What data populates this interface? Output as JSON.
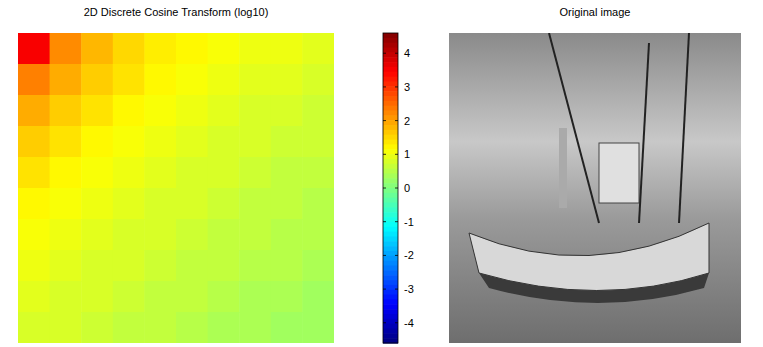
{
  "chart_data": [
    {
      "type": "heatmap",
      "title": "2D Discrete Cosine Transform (log10)",
      "tick_labels": false,
      "cells": [
        [
          3.5,
          2.2,
          1.8,
          1.5,
          1.3,
          1.2,
          1.1,
          1.0,
          1.0,
          0.9
        ],
        [
          2.3,
          1.9,
          1.6,
          1.4,
          1.2,
          1.1,
          1.0,
          0.9,
          0.9,
          0.8
        ],
        [
          1.9,
          1.6,
          1.4,
          1.2,
          1.1,
          1.0,
          0.9,
          0.8,
          0.8,
          0.7
        ],
        [
          1.6,
          1.4,
          1.2,
          1.1,
          1.0,
          0.9,
          0.8,
          0.8,
          0.7,
          0.7
        ],
        [
          1.4,
          1.2,
          1.1,
          1.0,
          0.9,
          0.8,
          0.8,
          0.7,
          0.6,
          0.6
        ],
        [
          1.2,
          1.1,
          1.0,
          0.9,
          0.8,
          0.8,
          0.7,
          0.6,
          0.6,
          0.5
        ],
        [
          1.1,
          1.0,
          0.9,
          0.8,
          0.8,
          0.7,
          0.6,
          0.6,
          0.5,
          0.5
        ],
        [
          1.0,
          0.9,
          0.8,
          0.8,
          0.7,
          0.6,
          0.6,
          0.5,
          0.5,
          0.4
        ],
        [
          0.9,
          0.8,
          0.8,
          0.7,
          0.6,
          0.6,
          0.5,
          0.4,
          0.4,
          0.3
        ],
        [
          0.8,
          0.8,
          0.7,
          0.6,
          0.6,
          0.5,
          0.4,
          0.4,
          0.3,
          0.3
        ]
      ],
      "color_range": [
        -4.6,
        4.6
      ],
      "color_ticks": [
        -4,
        -3,
        -2,
        -1,
        0,
        1,
        2,
        3,
        4
      ]
    },
    {
      "type": "image",
      "title": "Original image"
    }
  ]
}
